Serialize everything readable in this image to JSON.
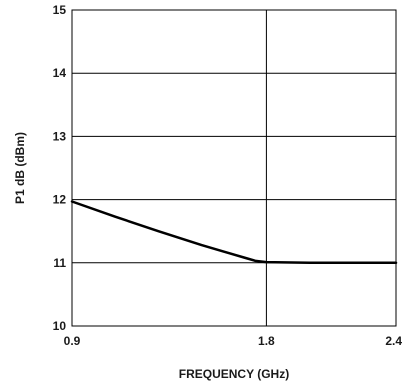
{
  "chart_data": {
    "type": "line",
    "title": "",
    "xlabel": "FREQUENCY (GHz)",
    "ylabel": "P1 dB (dBm)",
    "xlim": [
      0.9,
      2.4
    ],
    "ylim": [
      10,
      15
    ],
    "xticks": [
      "0.9",
      "1.8",
      "2.4"
    ],
    "xtick_values": [
      0.9,
      1.8,
      2.4
    ],
    "yticks": [
      "10",
      "11",
      "12",
      "13",
      "14",
      "15"
    ],
    "ytick_values": [
      10,
      11,
      12,
      13,
      14,
      15
    ],
    "grid": true,
    "line_color": "#000000",
    "grid_color": "#000000",
    "series": [
      {
        "x": [
          0.9,
          1.1,
          1.3,
          1.5,
          1.6,
          1.7,
          1.75,
          1.8,
          2.0,
          2.2,
          2.4
        ],
        "y": [
          11.97,
          11.73,
          11.5,
          11.28,
          11.18,
          11.08,
          11.03,
          11.01,
          11.0,
          11.0,
          11.0
        ]
      }
    ]
  }
}
